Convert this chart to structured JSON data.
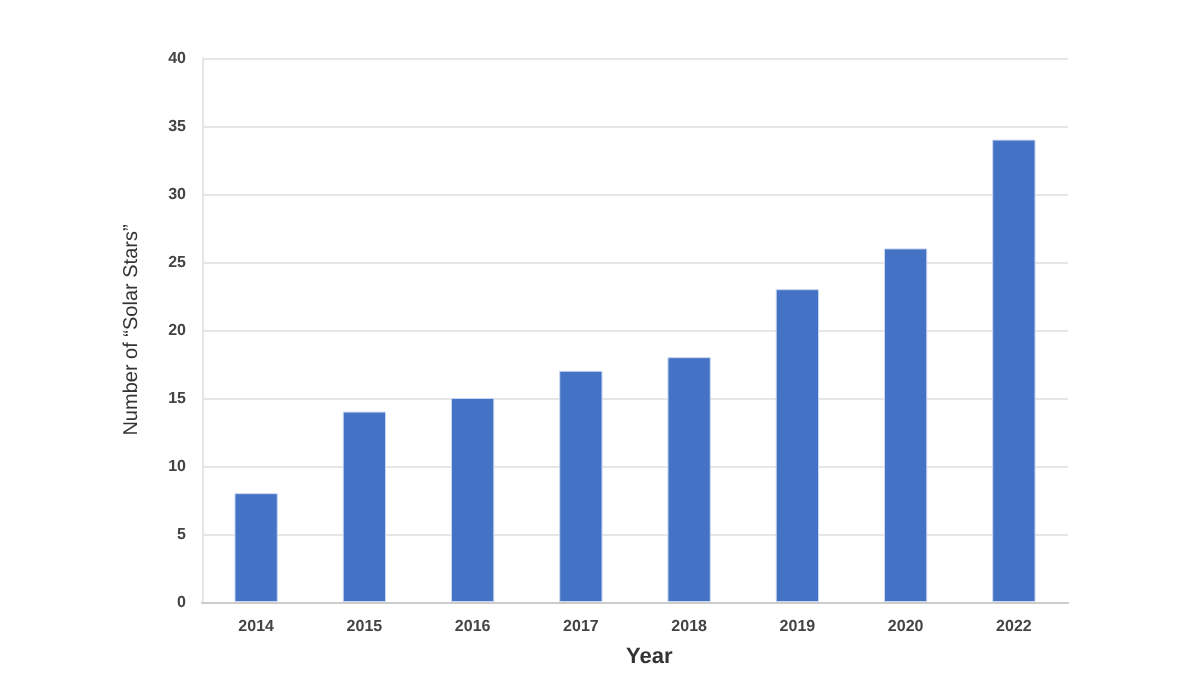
{
  "chart_data": {
    "type": "bar",
    "xlabel": "Year",
    "ylabel": "Number of “Solar Stars”",
    "categories": [
      "2014",
      "2015",
      "2016",
      "2017",
      "2018",
      "2019",
      "2020",
      "2022"
    ],
    "values": [
      8,
      14,
      15,
      17,
      18,
      23,
      26,
      34
    ],
    "color": "#4472c4",
    "ylim": [
      0,
      40
    ],
    "yticks": [
      0,
      5,
      10,
      15,
      20,
      25,
      30,
      35,
      40
    ],
    "grid": "y"
  }
}
